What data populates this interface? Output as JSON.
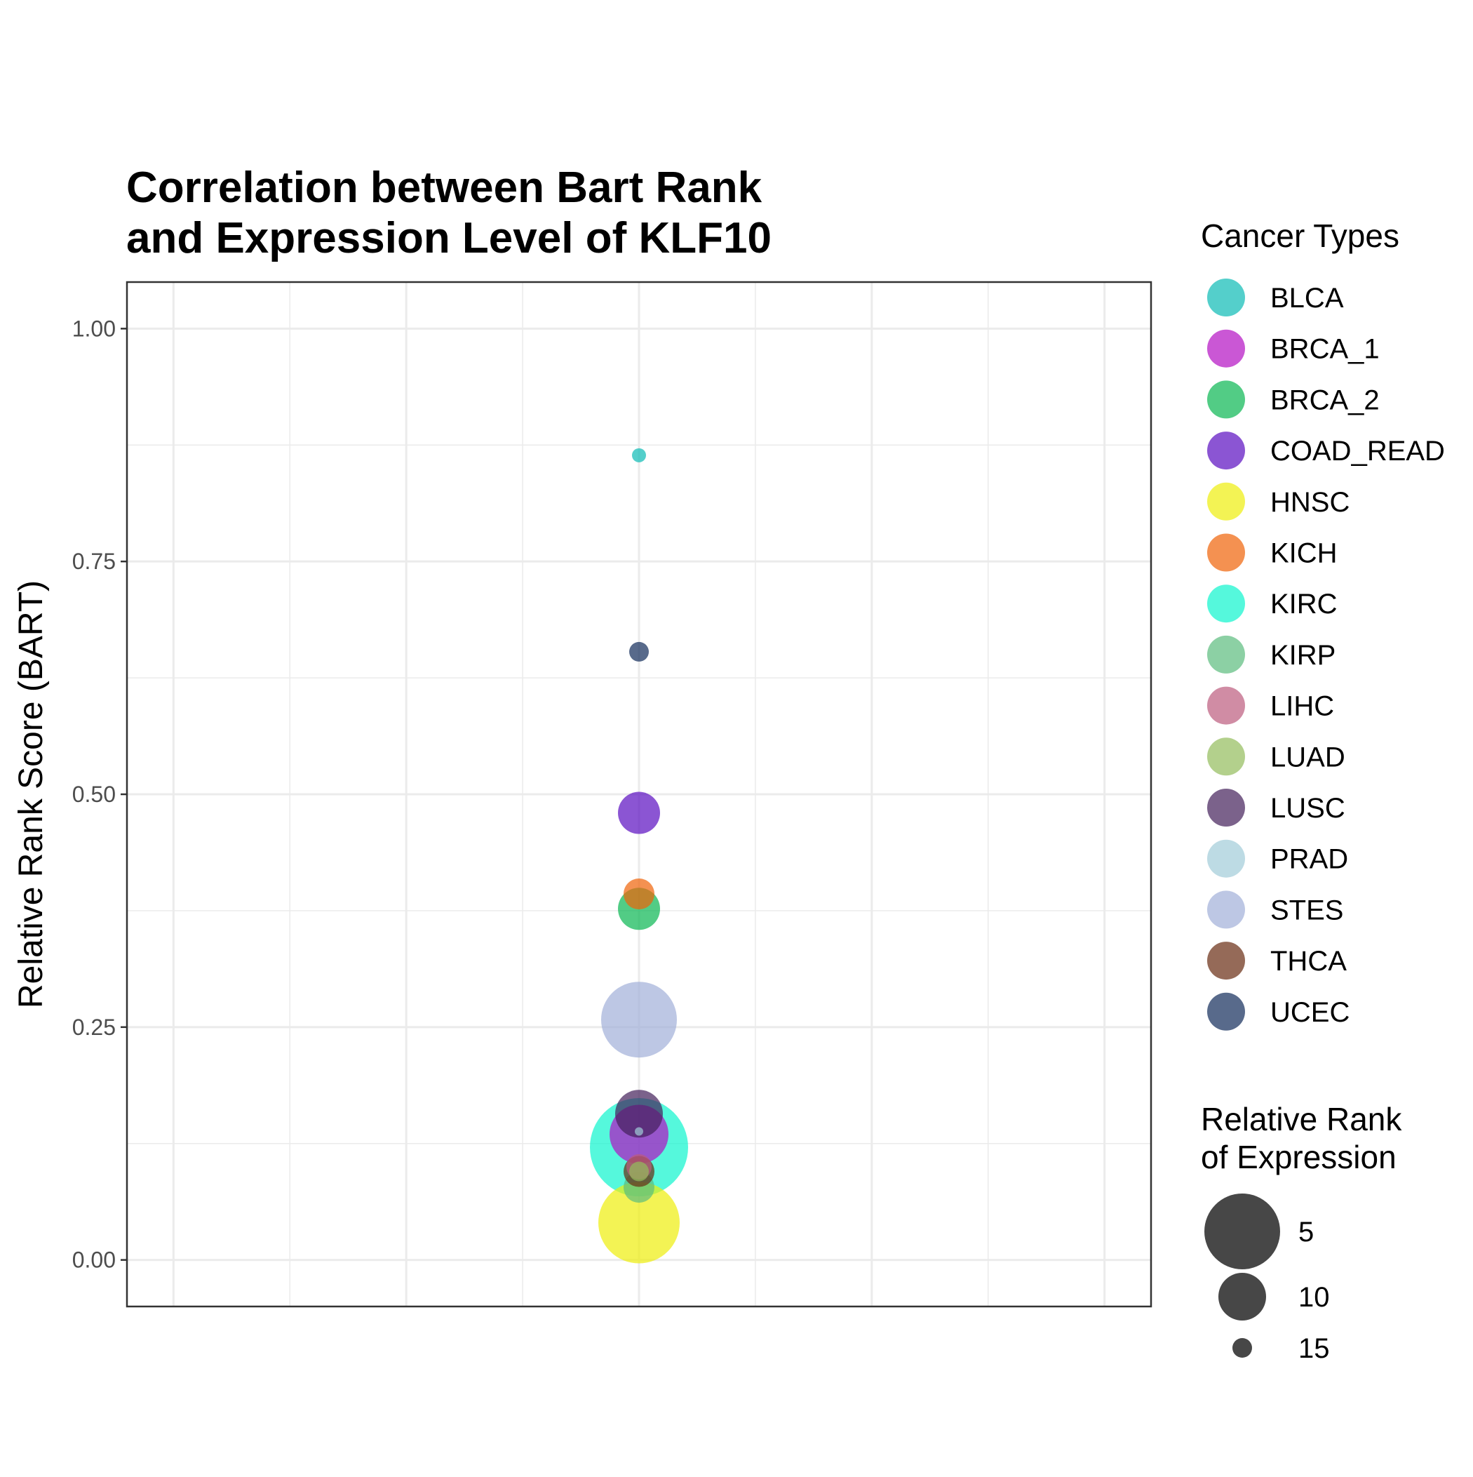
{
  "chart_data": {
    "type": "scatter",
    "title_lines": [
      "Correlation between Bart Rank",
      "and Expression Level of KLF10"
    ],
    "xlabel": "",
    "ylabel": "Relative Rank Score (BART)",
    "x_range": [
      -0.55,
      0.55
    ],
    "ylim": [
      -0.05,
      1.05
    ],
    "y_ticks": [
      0.0,
      0.25,
      0.5,
      0.75,
      1.0
    ],
    "y_tick_labels": [
      "0.00",
      "0.25",
      "0.50",
      "0.75",
      "1.00"
    ],
    "grid": true,
    "point_opacity": 0.7,
    "points": [
      {
        "name": "BLCA",
        "color": "#0BBBB5",
        "x": 0,
        "y": 0.864,
        "rank": 16
      },
      {
        "name": "BRCA_1",
        "color": "#B30FC3",
        "x": 0,
        "y": 0.135,
        "rank": 8
      },
      {
        "name": "BRCA_2",
        "color": "#09B751",
        "x": 0,
        "y": 0.377,
        "rank": 11
      },
      {
        "name": "COAD_READ",
        "color": "#5A0DC0",
        "x": 0,
        "y": 0.48,
        "rank": 11
      },
      {
        "name": "HNSC",
        "color": "#EEEE0C",
        "x": 0,
        "y": 0.04,
        "rank": 4
      },
      {
        "name": "KICH",
        "color": "#EF6207",
        "x": 0,
        "y": 0.393,
        "rank": 13
      },
      {
        "name": "KIRC",
        "color": "#0DF5CD",
        "x": 0,
        "y": 0.121,
        "rank": 1
      },
      {
        "name": "KIRP",
        "color": "#5BBC7D",
        "x": 0,
        "y": 0.078,
        "rank": 13
      },
      {
        "name": "LIHC",
        "color": "#BC5B7D",
        "x": 0,
        "y": 0.1,
        "rank": 14
      },
      {
        "name": "LUAD",
        "color": "#93BC5B",
        "x": 0,
        "y": 0.095,
        "rank": 15
      },
      {
        "name": "LUSC",
        "color": "#431F5A",
        "x": 0,
        "y": 0.157,
        "rank": 10
      },
      {
        "name": "PRAD",
        "color": "#A1CCD8",
        "x": 0,
        "y": 0.138,
        "rank": 17
      },
      {
        "name": "STES",
        "color": "#A1AFD8",
        "x": 0,
        "y": 0.258,
        "rank": 5
      },
      {
        "name": "THCA",
        "color": "#682B11",
        "x": 0,
        "y": 0.095,
        "rank": 13
      },
      {
        "name": "UCEC",
        "color": "#112B5A",
        "x": 0,
        "y": 0.653,
        "rank": 15
      }
    ],
    "legend_color_title": "Cancer Types",
    "legend_size_title_lines": [
      "Relative Rank",
      "of Expression"
    ],
    "legend_size_breaks": [
      5,
      10,
      15
    ],
    "legend_size_labels": [
      "5",
      "10",
      "15"
    ],
    "size_legend_color": "#333333"
  }
}
